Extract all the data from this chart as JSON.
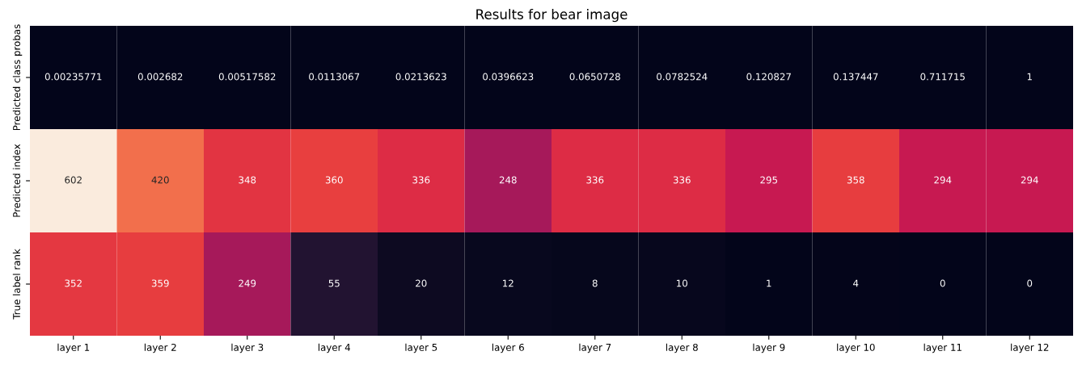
{
  "chart_data": {
    "type": "heatmap",
    "title": "Results for bear image",
    "categories": [
      "layer 1",
      "layer 2",
      "layer 3",
      "layer 4",
      "layer 5",
      "layer 6",
      "layer 7",
      "layer 8",
      "layer 9",
      "layer 10",
      "layer 11",
      "layer 12"
    ],
    "y_categories": [
      "Predicted class probas",
      "Predicted index",
      "True label rank"
    ],
    "cells": [
      [
        0.00235771,
        0.002682,
        0.00517582,
        0.0113067,
        0.0213623,
        0.0396623,
        0.0650728,
        0.0782524,
        0.120827,
        0.137447,
        0.711715,
        1
      ],
      [
        602,
        420,
        348,
        360,
        336,
        248,
        336,
        336,
        295,
        358,
        294,
        294
      ],
      [
        352,
        359,
        249,
        55,
        20,
        12,
        8,
        10,
        1,
        4,
        0,
        0
      ]
    ],
    "data_labels": true
  }
}
